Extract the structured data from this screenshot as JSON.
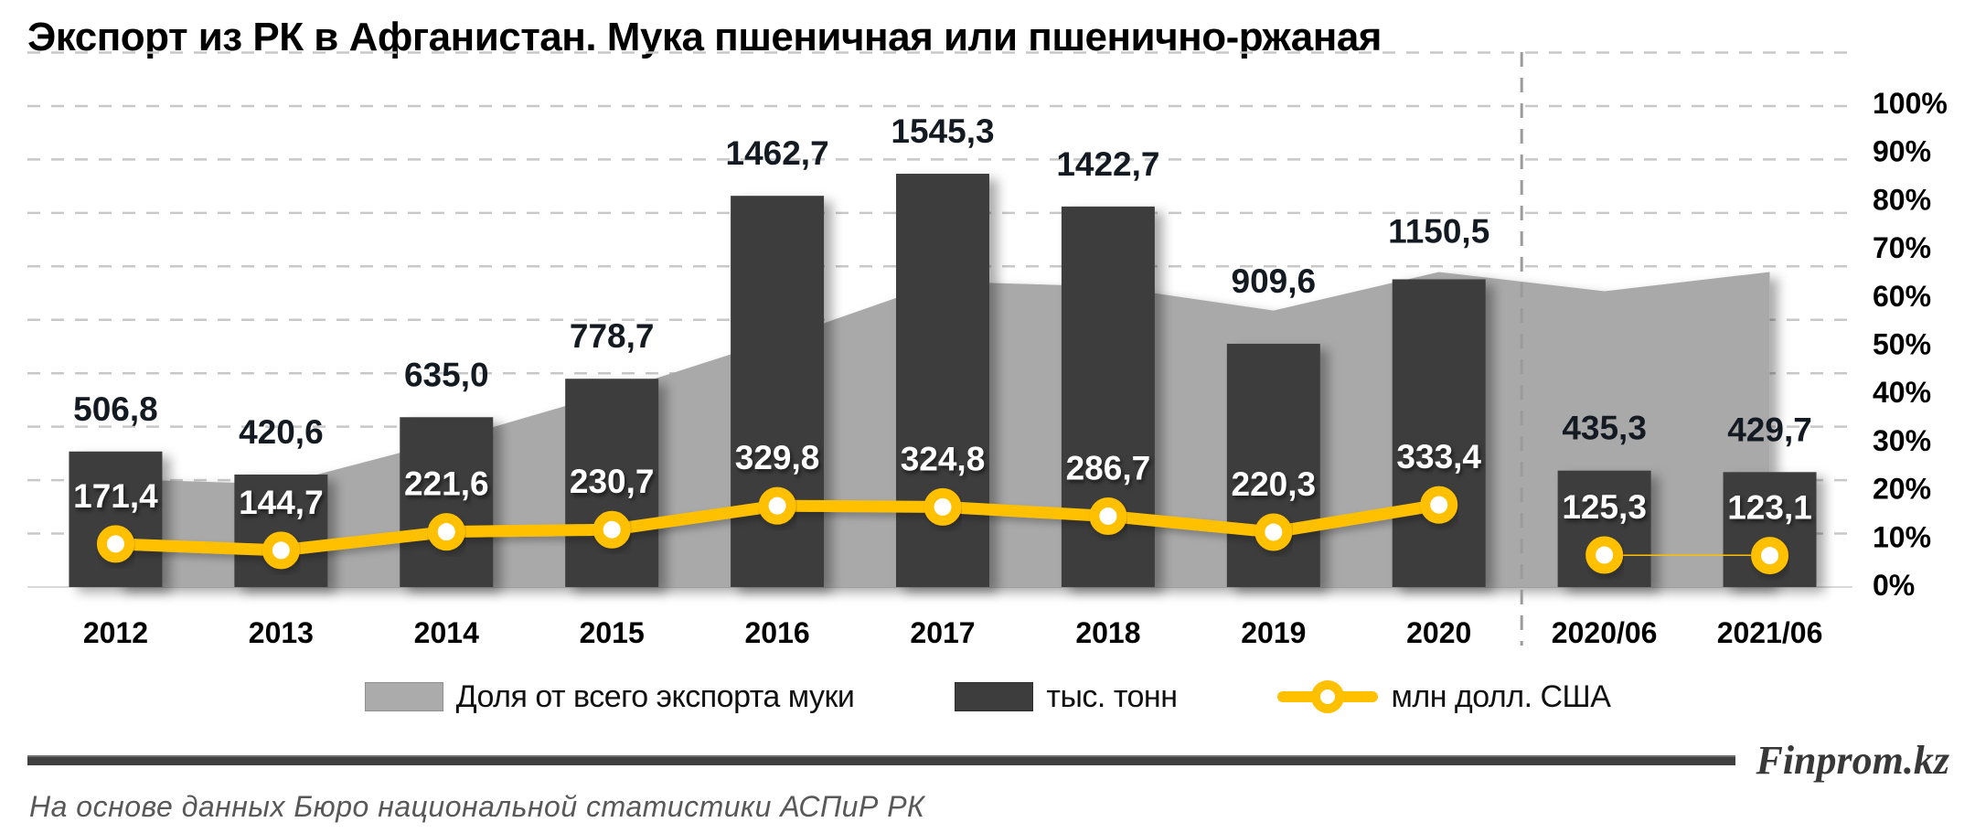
{
  "title": "Экспорт из РК в Афганистан. Мука пшеничная или пшенично-ржаная",
  "chart_data": {
    "type": "bar",
    "combo_types": [
      "area",
      "bar",
      "line"
    ],
    "categories": [
      "2012",
      "2013",
      "2014",
      "2015",
      "2016",
      "2017",
      "2018",
      "2019",
      "2020",
      "2020/06",
      "2021/06"
    ],
    "series": [
      {
        "name": "Доля от всего экспорта муки",
        "type": "area",
        "axis": "right-percent",
        "color": "#a9a9a9",
        "values": [
          22,
          21,
          30,
          40,
          51,
          63,
          62,
          57,
          65,
          61,
          65
        ]
      },
      {
        "name": "тыс. тонн",
        "type": "bar",
        "axis": "hidden-left",
        "color": "#3d3d3d",
        "values": [
          506.8,
          420.6,
          635.0,
          778.7,
          1462.7,
          1545.3,
          1422.7,
          909.6,
          1150.5,
          435.3,
          429.7
        ],
        "labels": [
          "506,8",
          "420,6",
          "635,0",
          "778,7",
          "1462,7",
          "1545,3",
          "1422,7",
          "909,6",
          "1150,5",
          "435,3",
          "429,7"
        ]
      },
      {
        "name": "млн долл. США",
        "type": "line",
        "axis": "hidden-line",
        "color": "#ffc000",
        "marker_fill": "#ffffff",
        "values": [
          171.4,
          144.7,
          221.6,
          230.7,
          329.8,
          324.8,
          286.7,
          220.3,
          333.4,
          125.3,
          123.1
        ],
        "labels": [
          "171,4",
          "144,7",
          "221,6",
          "230,7",
          "329,8",
          "324,8",
          "286,7",
          "220,3",
          "333,4",
          "125,3",
          "123,1"
        ]
      }
    ],
    "right_axis": {
      "ticks": [
        "0%",
        "10%",
        "20%",
        "30%",
        "40%",
        "50%",
        "60%",
        "70%",
        "80%",
        "90%",
        "100%"
      ],
      "min": 0,
      "max": 100
    },
    "hidden_bar_axis_max": 2000,
    "hidden_line_axis_max": 2000,
    "separator_after_index": 8,
    "grid": true,
    "legend_position": "bottom",
    "layout_hints": {
      "bar_label_extra_lift": {
        "7": 22,
        "8": 6
      }
    }
  },
  "legend": {
    "items": [
      {
        "label": "Доля от всего экспорта муки",
        "swatch": "area",
        "color": "#a9a9a9"
      },
      {
        "label": "тыс. тонн",
        "swatch": "bar",
        "color": "#3d3d3d"
      },
      {
        "label": "млн долл. США",
        "swatch": "line",
        "color": "#ffc000"
      }
    ]
  },
  "footer": {
    "brand": "Finprom.kz",
    "caption": "На основе данных  Бюро национальной  статистики АСПиР РК"
  }
}
